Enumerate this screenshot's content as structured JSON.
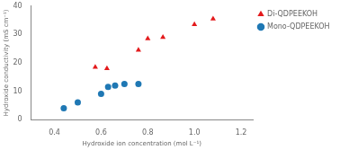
{
  "chart_data": {
    "type": "scatter",
    "xlabel": "Hydroxide ion concentration (mol L⁻¹)",
    "ylabel": "Hydroxide conductivity (mS cm⁻¹)",
    "series": [
      {
        "name": "Di-QDPEEKOH",
        "color": "#e31a1c",
        "marker": "triangle",
        "x": [
          0.575,
          0.625,
          0.76,
          0.8,
          0.865,
          1.0,
          1.08
        ],
        "values": [
          18.5,
          18.0,
          24.5,
          28.5,
          29.0,
          33.5,
          35.5
        ]
      },
      {
        "name": "Mono-QDPEEKOH",
        "color": "#1f78b4",
        "marker": "circle",
        "x": [
          0.44,
          0.5,
          0.6,
          0.63,
          0.66,
          0.7,
          0.76
        ],
        "values": [
          4.0,
          6.0,
          9.0,
          11.5,
          12.0,
          12.5,
          12.5
        ]
      }
    ],
    "xlim": [
      0.3,
      1.25
    ],
    "ylim": [
      0,
      40
    ],
    "xticks": [
      {
        "value": 0.4,
        "label": "0.4"
      },
      {
        "value": 0.6,
        "label": "0.6"
      },
      {
        "value": 0.8,
        "label": "0.8"
      },
      {
        "value": 1.0,
        "label": "1.0"
      },
      {
        "value": 1.2,
        "label": "1.2"
      }
    ],
    "yticks": [
      0,
      10,
      20,
      30,
      40
    ],
    "grid": false,
    "legend": "upper left"
  }
}
